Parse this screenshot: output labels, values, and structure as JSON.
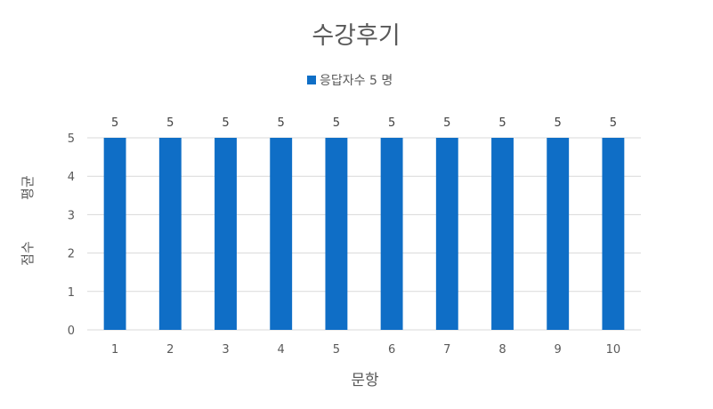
{
  "chart_data": {
    "type": "bar",
    "title": "수강후기",
    "legend": {
      "position": "top",
      "entries": [
        "응답자수 5 명"
      ]
    },
    "categories": [
      "1",
      "2",
      "3",
      "4",
      "5",
      "6",
      "7",
      "8",
      "9",
      "10"
    ],
    "series": [
      {
        "name": "응답자수 5 명",
        "values": [
          5,
          5,
          5,
          5,
          5,
          5,
          5,
          5,
          5,
          5
        ],
        "color": "#0f6ec6"
      }
    ],
    "data_labels": [
      "5",
      "5",
      "5",
      "5",
      "5",
      "5",
      "5",
      "5",
      "5",
      "5"
    ],
    "xlabel": "문항",
    "ylabel": "평균 점수",
    "ylim": [
      0,
      5
    ],
    "yticks": [
      0,
      1,
      2,
      3,
      4,
      5
    ],
    "grid": true,
    "colors": {
      "bar": "#0f6ec6",
      "grid": "#d9d9d9",
      "text": "#595959",
      "title": "#595959"
    }
  }
}
